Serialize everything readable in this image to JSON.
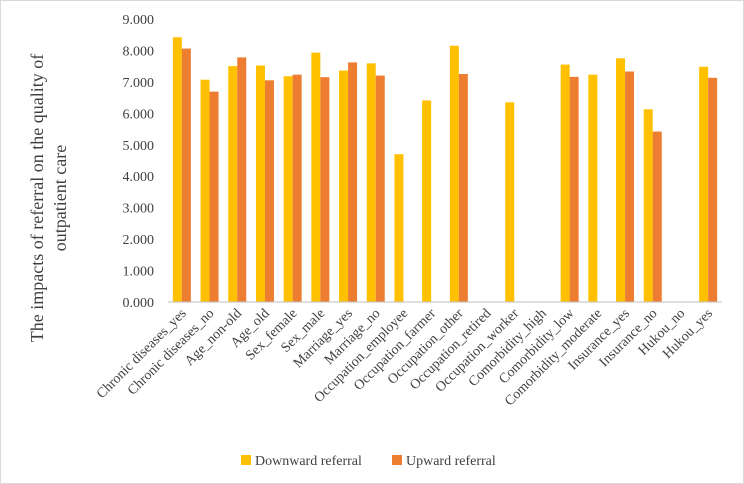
{
  "chart_data": {
    "type": "bar",
    "title": "",
    "xlabel": "",
    "ylabel": "The impacts of referral on the quality of outpatient care",
    "ylabel_lines": [
      "The impacts of referral on the quality of",
      "outpatient care"
    ],
    "ylim": [
      0,
      9
    ],
    "y_ticks": [
      "0.000",
      "1.000",
      "2.000",
      "3.000",
      "4.000",
      "5.000",
      "6.000",
      "7.000",
      "8.000",
      "9.000"
    ],
    "grid": false,
    "legend_position": "bottom",
    "categories": [
      "Chronic diseases_yes",
      "Chronic diseases_no",
      "Age_non-old",
      "Age_old",
      "Sex_female",
      "Sex_male",
      "Marriage_yes",
      "Marriage_no",
      "Occupation_employee",
      "Occupation_farmer",
      "Occupation_other",
      "Occupation_retired",
      "Occupation_worker",
      "Comorbidity_high",
      "Comorbidity_low",
      "Comorbidity_moderate",
      "Insurance_yes",
      "Insurance_no",
      "Hukou_no",
      "Hukou_yes"
    ],
    "series": [
      {
        "name": "Downward referral",
        "color": "#FFC000",
        "values": [
          8.42,
          7.07,
          7.5,
          7.52,
          7.18,
          7.93,
          7.36,
          7.59,
          4.7,
          6.41,
          8.15,
          null,
          6.35,
          null,
          7.55,
          7.23,
          7.75,
          6.13,
          null,
          7.48
        ]
      },
      {
        "name": "Upward referral",
        "color": "#ED7D31",
        "values": [
          8.06,
          6.69,
          7.78,
          7.05,
          7.23,
          7.15,
          7.62,
          7.2,
          null,
          null,
          7.25,
          null,
          null,
          null,
          7.16,
          null,
          7.33,
          5.42,
          null,
          7.13
        ]
      }
    ]
  }
}
